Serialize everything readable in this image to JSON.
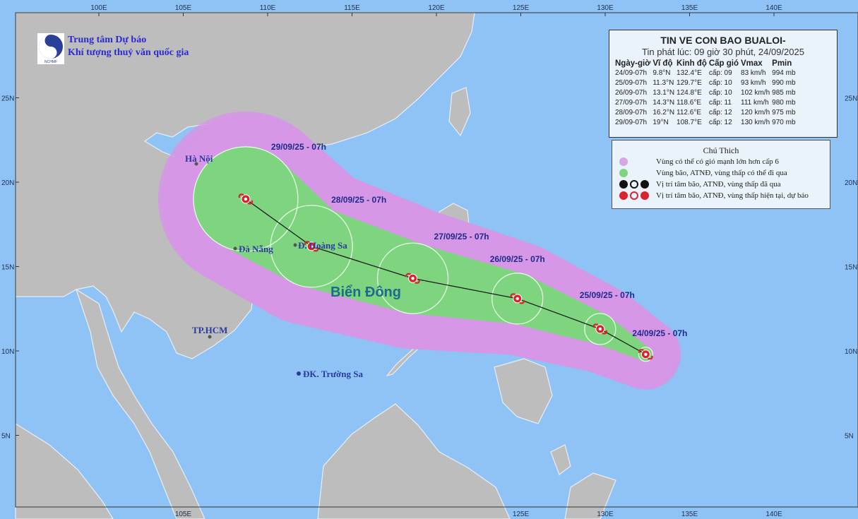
{
  "header": {
    "logo_text": "NCHMF",
    "org_line1": "Trung tâm Dự báo",
    "org_line2": "Khí tượng thuỷ văn quốc gia"
  },
  "info_box": {
    "title": "TIN VE CON BAO BUALOI-",
    "issued": "Tin phát lúc: 09 giờ 30 phút, 24/09/2025",
    "columns": [
      "Ngày-giờ",
      "Vĩ độ",
      "Kinh độ",
      "Cấp gió",
      "Vmax",
      "Pmin"
    ],
    "rows": [
      [
        "24/09-07h",
        "9.8°N",
        "132.4°E",
        "cấp: 09",
        "83 km/h",
        "994 mb"
      ],
      [
        "25/09-07h",
        "11.3°N",
        "129.7°E",
        "cấp: 10",
        "93 km/h",
        "990 mb"
      ],
      [
        "26/09-07h",
        "13.1°N",
        "124.8°E",
        "cấp: 10",
        "102 km/h",
        "985 mb"
      ],
      [
        "27/09-07h",
        "14.3°N",
        "118.6°E",
        "cấp: 11",
        "111 km/h",
        "980 mb"
      ],
      [
        "28/09-07h",
        "16.2°N",
        "112.6°E",
        "cấp: 12",
        "120 km/h",
        "975 mb"
      ],
      [
        "29/09-07h",
        "19°N",
        "108.7°E",
        "cấp: 12",
        "130 km/h",
        "970 mb"
      ]
    ]
  },
  "legend": {
    "title": "Chú Thich",
    "items": [
      {
        "label": "Vùng có thể có gió mạnh lớn hơn cấp 6",
        "color": "#d6a6e6"
      },
      {
        "label": "Vùng bão, ATNĐ, vùng thấp có thể đi qua",
        "color": "#7fd57f"
      },
      {
        "label": "Vị trí tâm bão, ATNĐ, vùng thấp đã qua",
        "color": "#111111"
      },
      {
        "label": "Vị trí tâm bão, ATNĐ, vùng thấp hiện tại, dự báo",
        "color": "#d9232e"
      }
    ]
  },
  "track": [
    {
      "label": "24/09/25 - 07h",
      "lat": 9.8,
      "lon": 132.4
    },
    {
      "label": "25/09/25 - 07h",
      "lat": 11.3,
      "lon": 129.7
    },
    {
      "label": "26/09/25 - 07h",
      "lat": 13.1,
      "lon": 124.8
    },
    {
      "label": "27/09/25 - 07h",
      "lat": 14.3,
      "lon": 118.6
    },
    {
      "label": "28/09/25 - 07h",
      "lat": 16.2,
      "lon": 112.6
    },
    {
      "label": "29/09/25 - 07h",
      "lat": 19,
      "lon": 108.7
    }
  ],
  "places": {
    "hanoi": "Hà Nội",
    "danang": "Đà Nẵng",
    "hoangsa": "Đ. Hoàng Sa",
    "hcm": "TP.HCM",
    "truongsa": "ĐK. Trường Sa",
    "sea": "Biển Đông"
  },
  "axes": {
    "lon_top": [
      "100E",
      "105E",
      "110E",
      "115E",
      "120E",
      "125E",
      "130E",
      "135E",
      "140E"
    ],
    "lon_bottom": [
      "105E",
      "125E",
      "130E",
      "135E",
      "140E"
    ],
    "lat": [
      "25N",
      "20N",
      "15N",
      "10N",
      "5N"
    ]
  },
  "colors": {
    "sea": "#8fc3f5",
    "land": "#bdbdbd",
    "wind_zone": "#d6a6e6",
    "storm_zone": "#7fd57f",
    "storm_icon": "#d9232e"
  }
}
